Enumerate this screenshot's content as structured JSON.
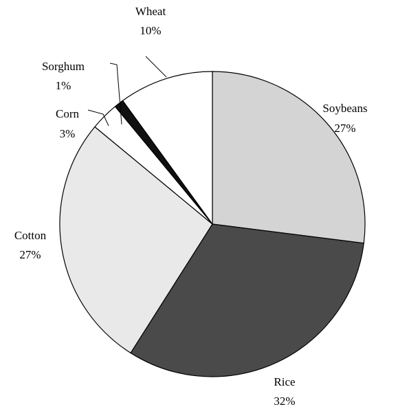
{
  "chart_data": {
    "type": "pie",
    "categories": [
      "Soybeans",
      "Rice",
      "Cotton",
      "Corn",
      "Sorghum",
      "Wheat"
    ],
    "values": [
      27,
      32,
      27,
      3,
      1,
      10
    ],
    "value_labels": [
      "27%",
      "32%",
      "27%",
      "3%",
      "1%",
      "10%"
    ],
    "colors": [
      "#d4d4d4",
      "#4a4a4a",
      "#e9e9e9",
      "#ffffff",
      "#111111",
      "#ffffff"
    ]
  }
}
